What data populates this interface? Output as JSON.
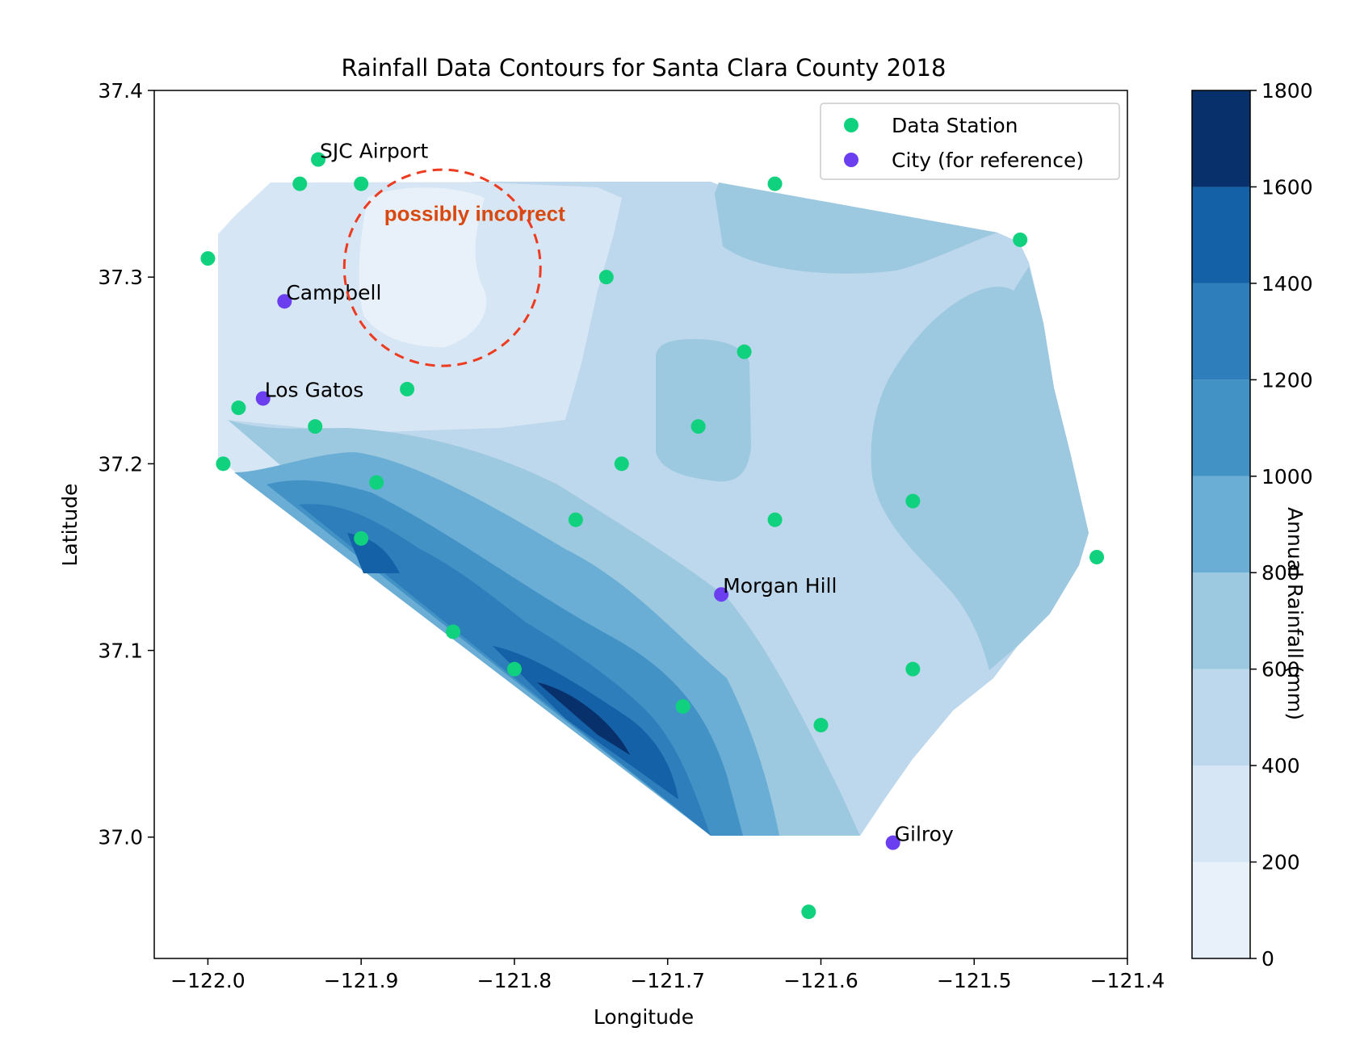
{
  "chart_data": {
    "type": "contour",
    "title": "Rainfall Data Contours for Santa Clara County 2018",
    "xlabel": "Longitude",
    "ylabel": "Latitude",
    "xlim": [
      -122.035,
      -121.4
    ],
    "ylim": [
      36.935,
      37.4
    ],
    "xticks": [
      -122.0,
      -121.9,
      -121.8,
      -121.7,
      -121.6,
      -121.5,
      -121.4
    ],
    "xtick_labels": [
      "−122.0",
      "−121.9",
      "−121.8",
      "−121.7",
      "−121.6",
      "−121.5",
      "−121.4"
    ],
    "yticks": [
      37.0,
      37.1,
      37.2,
      37.3,
      37.4
    ],
    "ytick_labels": [
      "37.0",
      "37.1",
      "37.2",
      "37.3",
      "37.4"
    ],
    "colorbar": {
      "label": "Annual Rainfall (mm)",
      "levels": [
        0,
        200,
        400,
        600,
        800,
        1000,
        1200,
        1400,
        1600,
        1800
      ],
      "tick_labels": [
        "0",
        "200",
        "400",
        "600",
        "800",
        "1000",
        "1200",
        "1400",
        "1600",
        "1800"
      ],
      "colors": [
        "#e8f1fa",
        "#d6e6f4",
        "#bdd7ec",
        "#9cc8e0",
        "#6aaed6",
        "#4292c6",
        "#2e7ebc",
        "#1461a8",
        "#08306b"
      ]
    },
    "stations": {
      "name": "Data Station",
      "color": "#10d27e",
      "points": [
        [
          -122.0,
          37.31
        ],
        [
          -121.94,
          37.35
        ],
        [
          -121.928,
          37.363
        ],
        [
          -121.9,
          37.35
        ],
        [
          -121.74,
          37.3
        ],
        [
          -121.63,
          37.35
        ],
        [
          -121.47,
          37.32
        ],
        [
          -121.65,
          37.26
        ],
        [
          -121.98,
          37.23
        ],
        [
          -121.93,
          37.22
        ],
        [
          -121.87,
          37.24
        ],
        [
          -121.99,
          37.2
        ],
        [
          -121.89,
          37.19
        ],
        [
          -121.73,
          37.2
        ],
        [
          -121.68,
          37.22
        ],
        [
          -121.9,
          37.16
        ],
        [
          -121.76,
          37.17
        ],
        [
          -121.63,
          37.17
        ],
        [
          -121.54,
          37.18
        ],
        [
          -121.42,
          37.15
        ],
        [
          -121.84,
          37.11
        ],
        [
          -121.8,
          37.09
        ],
        [
          -121.69,
          37.07
        ],
        [
          -121.6,
          37.06
        ],
        [
          -121.54,
          37.09
        ],
        [
          -121.608,
          36.96
        ]
      ]
    },
    "cities": {
      "name": "City (for reference)",
      "color": "#6b3ff0",
      "points": [
        {
          "label": "SJC Airport",
          "lon": -121.928,
          "lat": 37.363,
          "show_marker": false
        },
        {
          "label": "Campbell",
          "lon": -121.95,
          "lat": 37.287,
          "show_marker": true
        },
        {
          "label": "Los Gatos",
          "lon": -121.964,
          "lat": 37.235,
          "show_marker": true
        },
        {
          "label": "Morgan Hill",
          "lon": -121.665,
          "lat": 37.13,
          "show_marker": true
        },
        {
          "label": "Gilroy",
          "lon": -121.553,
          "lat": 36.997,
          "show_marker": true
        }
      ]
    },
    "annotation": {
      "text": "possibly incorrect",
      "color": "#d9480f",
      "circle_color": "#ee3a1f",
      "center_lon": -121.847,
      "center_lat": 37.305,
      "radius_deg_lon": 0.064
    },
    "legend": {
      "position": "upper right",
      "entries": [
        "Data Station",
        "City (for reference)"
      ]
    }
  }
}
